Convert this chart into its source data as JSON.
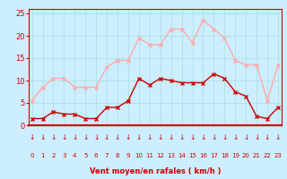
{
  "hours": [
    0,
    1,
    2,
    3,
    4,
    5,
    6,
    7,
    8,
    9,
    10,
    11,
    12,
    13,
    14,
    15,
    16,
    17,
    18,
    19,
    20,
    21,
    22,
    23
  ],
  "wind_avg": [
    1.5,
    1.5,
    3,
    2.5,
    2.5,
    1.5,
    1.5,
    4,
    4,
    5.5,
    10.5,
    9,
    10.5,
    10,
    9.5,
    9.5,
    9.5,
    11.5,
    10.5,
    7.5,
    6.5,
    2,
    1.5,
    4
  ],
  "wind_gust": [
    5.5,
    8.5,
    10.5,
    10.5,
    8.5,
    8.5,
    8.5,
    13,
    14.5,
    14.5,
    19.5,
    18,
    18,
    21.5,
    21.5,
    18.5,
    23.5,
    21.5,
    19.5,
    14.5,
    13.5,
    13.5,
    5.5,
    13.5
  ],
  "avg_color": "#cc0000",
  "gust_color": "#ffaaaa",
  "bg_color": "#cceeff",
  "grid_color": "#aadddd",
  "axis_color": "#cc0000",
  "xlabel": "Vent moyen/en rafales ( km/h )",
  "yticks": [
    0,
    5,
    10,
    15,
    20,
    25
  ],
  "ylim": [
    0,
    26
  ],
  "xlim": [
    -0.3,
    23.3
  ]
}
